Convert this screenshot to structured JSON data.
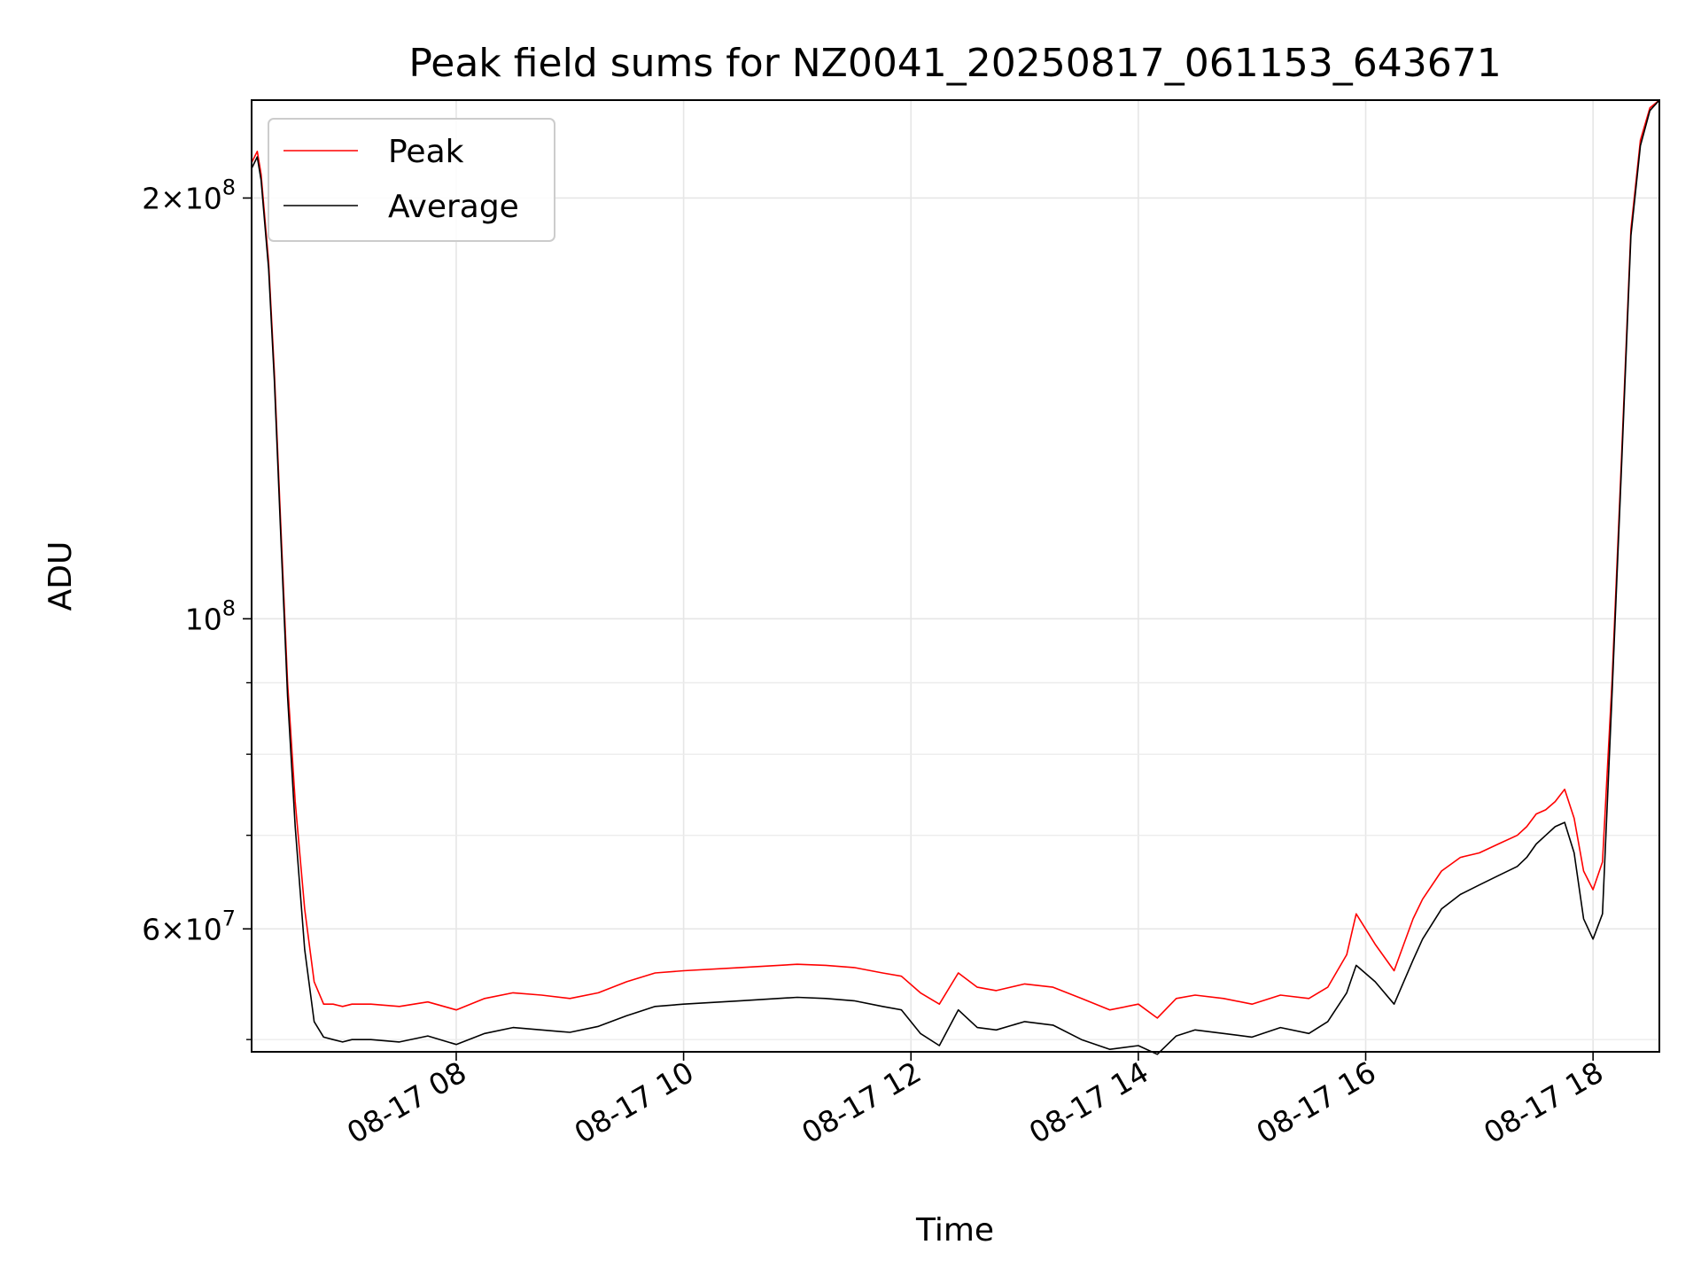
{
  "chart_data": {
    "type": "line",
    "title": "Peak field sums for NZ0041_20250817_061153_643671",
    "xlabel": "Time",
    "ylabel": "ADU",
    "y_scale": "log",
    "xlim": [
      "08-17 06:12",
      "08-17 18:35"
    ],
    "ylim": [
      49000000,
      235000000
    ],
    "x_ticks": [
      {
        "label": "08-17 08",
        "value": "08-17 08:00"
      },
      {
        "label": "08-17 10",
        "value": "08-17 10:00"
      },
      {
        "label": "08-17 12",
        "value": "08-17 12:00"
      },
      {
        "label": "08-17 14",
        "value": "08-17 14:00"
      },
      {
        "label": "08-17 16",
        "value": "08-17 16:00"
      },
      {
        "label": "08-17 18",
        "value": "08-17 18:00"
      }
    ],
    "y_ticks_major": [
      {
        "value": 200000000,
        "mantissa": "2",
        "exponent": "8"
      },
      {
        "value": 100000000,
        "mantissa": "",
        "exponent": "8"
      },
      {
        "value": 60000000,
        "mantissa": "6",
        "exponent": "7"
      }
    ],
    "y_ticks_minor": [
      50000000,
      70000000,
      80000000,
      90000000
    ],
    "grid": true,
    "legend": "upper-left",
    "series": [
      {
        "name": "Peak",
        "color": "#ff0000",
        "x": [
          "08-17 06:12",
          "08-17 06:15",
          "08-17 06:17",
          "08-17 06:21",
          "08-17 06:24",
          "08-17 06:27",
          "08-17 06:31",
          "08-17 06:35",
          "08-17 06:40",
          "08-17 06:45",
          "08-17 06:50",
          "08-17 06:55",
          "08-17 07:00",
          "08-17 07:05",
          "08-17 07:15",
          "08-17 07:30",
          "08-17 07:45",
          "08-17 08:00",
          "08-17 08:15",
          "08-17 08:30",
          "08-17 08:45",
          "08-17 09:00",
          "08-17 09:15",
          "08-17 09:30",
          "08-17 09:45",
          "08-17 10:00",
          "08-17 10:30",
          "08-17 11:00",
          "08-17 11:15",
          "08-17 11:30",
          "08-17 11:45",
          "08-17 11:55",
          "08-17 12:05",
          "08-17 12:15",
          "08-17 12:25",
          "08-17 12:35",
          "08-17 12:45",
          "08-17 13:00",
          "08-17 13:15",
          "08-17 13:30",
          "08-17 13:45",
          "08-17 14:00",
          "08-17 14:10",
          "08-17 14:20",
          "08-17 14:30",
          "08-17 14:45",
          "08-17 15:00",
          "08-17 15:15",
          "08-17 15:30",
          "08-17 15:40",
          "08-17 15:50",
          "08-17 15:55",
          "08-17 16:05",
          "08-17 16:15",
          "08-17 16:25",
          "08-17 16:30",
          "08-17 16:40",
          "08-17 16:50",
          "08-17 17:00",
          "08-17 17:10",
          "08-17 17:20",
          "08-17 17:25",
          "08-17 17:30",
          "08-17 17:35",
          "08-17 17:40",
          "08-17 17:45",
          "08-17 17:50",
          "08-17 17:55",
          "08-17 18:00",
          "08-17 18:05",
          "08-17 18:10",
          "08-17 18:15",
          "08-17 18:20",
          "08-17 18:25",
          "08-17 18:30",
          "08-17 18:35"
        ],
        "values": [
          212000000,
          216000000,
          208000000,
          180000000,
          150000000,
          120000000,
          90000000,
          74000000,
          62000000,
          55000000,
          53000000,
          53000000,
          52800000,
          53000000,
          53000000,
          52800000,
          53200000,
          52500000,
          53500000,
          54000000,
          53800000,
          53500000,
          54000000,
          55000000,
          55800000,
          56000000,
          56300000,
          56600000,
          56500000,
          56300000,
          55800000,
          55500000,
          54000000,
          53000000,
          55800000,
          54500000,
          54200000,
          54800000,
          54500000,
          53500000,
          52500000,
          53000000,
          51800000,
          53500000,
          53800000,
          53500000,
          53000000,
          53800000,
          53500000,
          54500000,
          57500000,
          61500000,
          58500000,
          56000000,
          61000000,
          63000000,
          66000000,
          67500000,
          68000000,
          69000000,
          70000000,
          71000000,
          72500000,
          73000000,
          74000000,
          75500000,
          72000000,
          66000000,
          64000000,
          67000000,
          90000000,
          130000000,
          190000000,
          220000000,
          232000000,
          235000000
        ]
      },
      {
        "name": "Average",
        "color": "#000000",
        "x": [
          "08-17 06:12",
          "08-17 06:15",
          "08-17 06:17",
          "08-17 06:21",
          "08-17 06:24",
          "08-17 06:27",
          "08-17 06:31",
          "08-17 06:35",
          "08-17 06:40",
          "08-17 06:45",
          "08-17 06:50",
          "08-17 06:55",
          "08-17 07:00",
          "08-17 07:05",
          "08-17 07:15",
          "08-17 07:30",
          "08-17 07:45",
          "08-17 08:00",
          "08-17 08:15",
          "08-17 08:30",
          "08-17 08:45",
          "08-17 09:00",
          "08-17 09:15",
          "08-17 09:30",
          "08-17 09:45",
          "08-17 10:00",
          "08-17 10:30",
          "08-17 11:00",
          "08-17 11:15",
          "08-17 11:30",
          "08-17 11:45",
          "08-17 11:55",
          "08-17 12:05",
          "08-17 12:15",
          "08-17 12:25",
          "08-17 12:35",
          "08-17 12:45",
          "08-17 13:00",
          "08-17 13:15",
          "08-17 13:30",
          "08-17 13:45",
          "08-17 14:00",
          "08-17 14:10",
          "08-17 14:20",
          "08-17 14:30",
          "08-17 14:45",
          "08-17 15:00",
          "08-17 15:15",
          "08-17 15:30",
          "08-17 15:40",
          "08-17 15:50",
          "08-17 15:55",
          "08-17 16:05",
          "08-17 16:15",
          "08-17 16:25",
          "08-17 16:30",
          "08-17 16:40",
          "08-17 16:50",
          "08-17 17:00",
          "08-17 17:10",
          "08-17 17:20",
          "08-17 17:25",
          "08-17 17:30",
          "08-17 17:35",
          "08-17 17:40",
          "08-17 17:45",
          "08-17 17:50",
          "08-17 17:55",
          "08-17 18:00",
          "08-17 18:05",
          "08-17 18:10",
          "08-17 18:15",
          "08-17 18:20",
          "08-17 18:25",
          "08-17 18:30",
          "08-17 18:35"
        ],
        "values": [
          210000000,
          214000000,
          206000000,
          178000000,
          148000000,
          118000000,
          88000000,
          71000000,
          58000000,
          51500000,
          50200000,
          50000000,
          49800000,
          50000000,
          50000000,
          49800000,
          50300000,
          49600000,
          50500000,
          51000000,
          50800000,
          50600000,
          51100000,
          52000000,
          52800000,
          53000000,
          53300000,
          53600000,
          53500000,
          53300000,
          52800000,
          52500000,
          50500000,
          49500000,
          52500000,
          51000000,
          50800000,
          51500000,
          51200000,
          50000000,
          49200000,
          49500000,
          48800000,
          50300000,
          50800000,
          50500000,
          50200000,
          51000000,
          50500000,
          51500000,
          54000000,
          56500000,
          55000000,
          53000000,
          57000000,
          59000000,
          62000000,
          63500000,
          64500000,
          65500000,
          66500000,
          67500000,
          69000000,
          70000000,
          71000000,
          71500000,
          68000000,
          61000000,
          59000000,
          61500000,
          88000000,
          128000000,
          188000000,
          218000000,
          231000000,
          235000000
        ]
      }
    ]
  }
}
